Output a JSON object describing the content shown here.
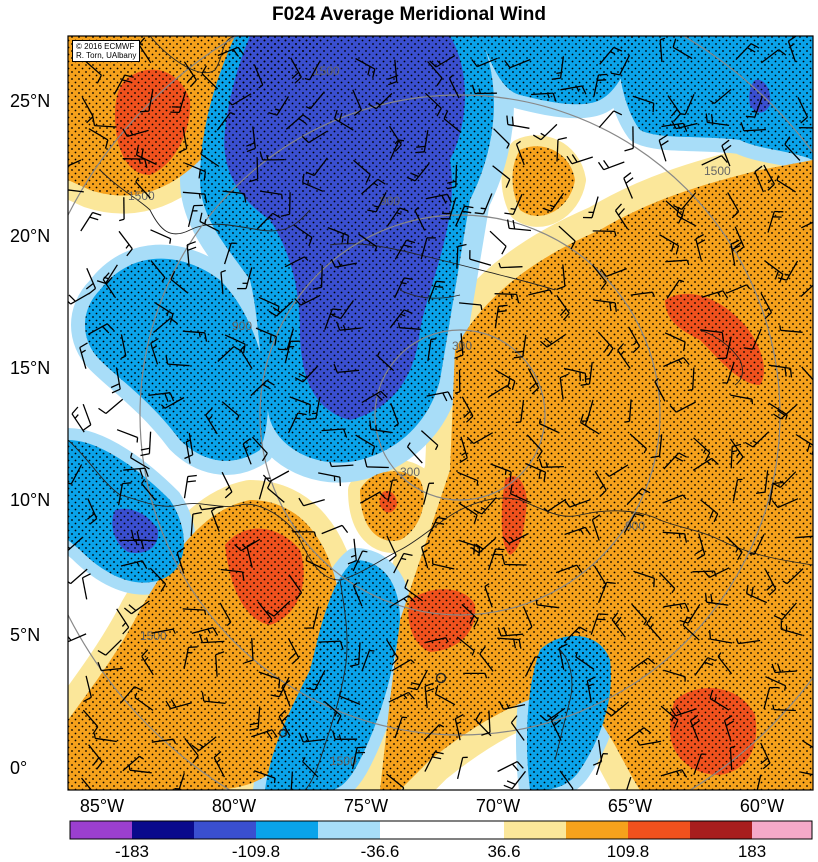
{
  "title": "F024 Average Meridional Wind",
  "credit": {
    "line1": "© 2016 ECMWF",
    "line2": "R. Torn, UAlbany"
  },
  "lat_labels": [
    "25°N",
    "20°N",
    "15°N",
    "10°N",
    "5°N",
    "0°"
  ],
  "lon_labels": [
    "85°W",
    "80°W",
    "75°W",
    "70°W",
    "65°W",
    "60°W"
  ],
  "range_ring_labels": [
    "300",
    "300",
    "900",
    "900",
    "900",
    "1500",
    "1500",
    "1500",
    "1500",
    "1500"
  ],
  "colorbar": {
    "tick_labels": [
      "-183",
      "-109.8",
      "-36.6",
      "36.6",
      "109.8",
      "183"
    ],
    "colors": [
      "#9b3fcf",
      "#0a0a8c",
      "#3a4fd0",
      "#0aa3ea",
      "#a8ddf8",
      "#ffffff",
      "#fbe79a",
      "#f6a21c",
      "#f0511d",
      "#a81e1e",
      "#f5a9c8"
    ]
  },
  "field_colors": {
    "strong_positive": "#f0511d",
    "positive": "#f6a21c",
    "weak_positive": "#fbe79a",
    "weak_negative": "#a8ddf8",
    "negative": "#0aa3ea",
    "strong_negative": "#3a4fd0"
  }
}
